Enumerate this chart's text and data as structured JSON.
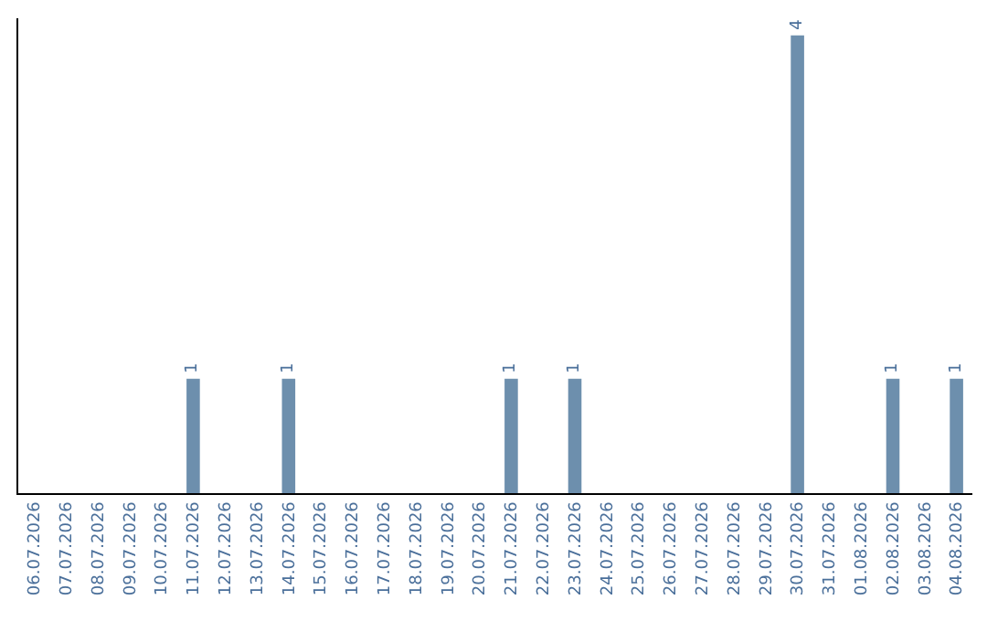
{
  "chart_data": {
    "type": "bar",
    "categories": [
      "06.07.2026",
      "07.07.2026",
      "08.07.2026",
      "09.07.2026",
      "10.07.2026",
      "11.07.2026",
      "12.07.2026",
      "13.07.2026",
      "14.07.2026",
      "15.07.2026",
      "16.07.2026",
      "17.07.2026",
      "18.07.2026",
      "19.07.2026",
      "20.07.2026",
      "21.07.2026",
      "22.07.2026",
      "23.07.2026",
      "24.07.2026",
      "25.07.2026",
      "26.07.2026",
      "27.07.2026",
      "28.07.2026",
      "29.07.2026",
      "30.07.2026",
      "31.07.2026",
      "01.08.2026",
      "02.08.2026",
      "03.08.2026",
      "04.08.2026"
    ],
    "values": [
      0,
      0,
      0,
      0,
      0,
      1,
      0,
      0,
      1,
      0,
      0,
      0,
      0,
      0,
      0,
      1,
      0,
      1,
      0,
      0,
      0,
      0,
      0,
      0,
      4,
      0,
      0,
      1,
      0,
      1
    ],
    "value_labels": [
      null,
      null,
      null,
      null,
      null,
      "1",
      null,
      null,
      "1",
      null,
      null,
      null,
      null,
      null,
      null,
      "1",
      null,
      "1",
      null,
      null,
      null,
      null,
      null,
      null,
      "4",
      null,
      null,
      "1",
      null,
      "1"
    ],
    "color": "#6d8fad",
    "ylim": [
      0,
      4.15
    ],
    "tick_labels": "x",
    "legend": false
  }
}
